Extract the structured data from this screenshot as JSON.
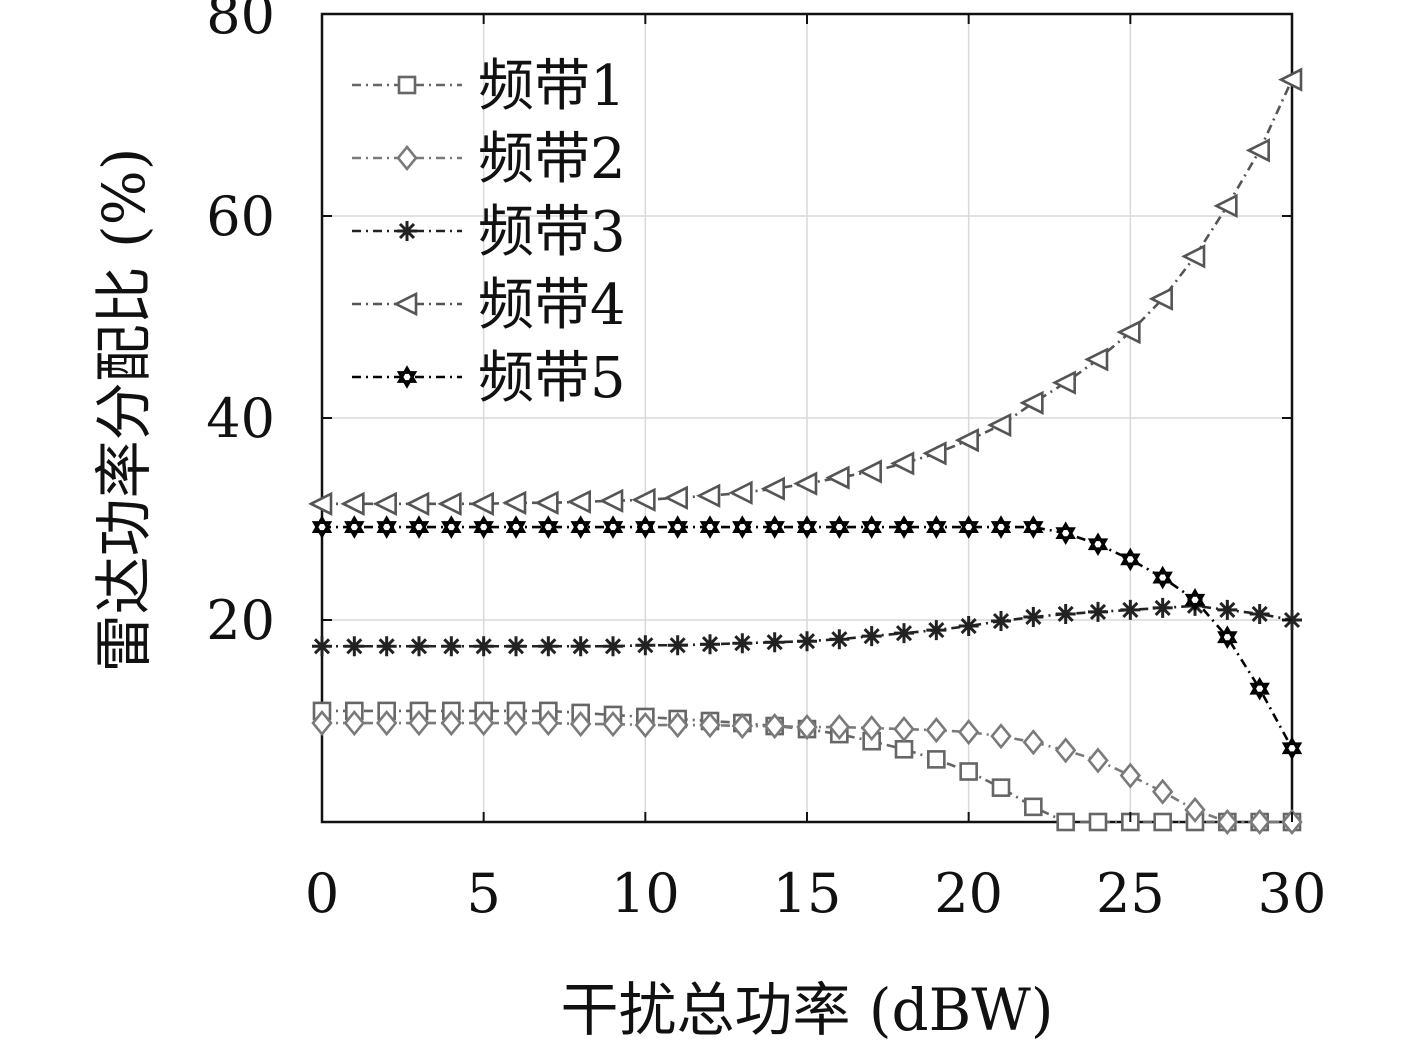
{
  "chart_data": {
    "type": "line",
    "xlabel": "干扰总功率 (dBW)",
    "ylabel": "雷达功率分配比 (%)",
    "xlim": [
      0,
      30
    ],
    "ylim": [
      0,
      80
    ],
    "xticks": [
      0,
      5,
      10,
      15,
      20,
      25,
      30
    ],
    "yticks": [
      20,
      40,
      60,
      80
    ],
    "grid": true,
    "legend_position": "top-left",
    "x": [
      0,
      1,
      2,
      3,
      4,
      5,
      6,
      7,
      8,
      9,
      10,
      11,
      12,
      13,
      14,
      15,
      16,
      17,
      18,
      19,
      20,
      21,
      22,
      23,
      24,
      25,
      26,
      27,
      28,
      29,
      30
    ],
    "series": [
      {
        "name": "频带1",
        "marker": "square",
        "color": "#666666",
        "values": [
          11,
          11,
          11,
          11,
          11,
          11,
          11,
          11,
          10.8,
          10.6,
          10.4,
          10.2,
          10,
          9.8,
          9.5,
          9.2,
          8.7,
          8,
          7.2,
          6.2,
          5,
          3.4,
          1.5,
          0,
          0,
          0,
          0,
          0,
          0,
          0,
          0
        ]
      },
      {
        "name": "频带2",
        "marker": "diamond",
        "color": "#7a7a7a",
        "values": [
          9.8,
          9.8,
          9.8,
          9.8,
          9.8,
          9.8,
          9.8,
          9.8,
          9.7,
          9.7,
          9.6,
          9.6,
          9.6,
          9.5,
          9.5,
          9.4,
          9.4,
          9.3,
          9.2,
          9.1,
          8.9,
          8.5,
          7.9,
          7.1,
          6.1,
          4.6,
          3,
          1.2,
          0,
          0,
          0
        ]
      },
      {
        "name": "频带3",
        "marker": "asterisk",
        "color": "#222222",
        "values": [
          17.4,
          17.4,
          17.4,
          17.4,
          17.4,
          17.4,
          17.4,
          17.4,
          17.4,
          17.4,
          17.5,
          17.5,
          17.6,
          17.7,
          17.8,
          17.9,
          18.1,
          18.4,
          18.7,
          19,
          19.4,
          19.9,
          20.3,
          20.6,
          20.8,
          21,
          21.2,
          21.4,
          21,
          20.6,
          20
        ]
      },
      {
        "name": "频带4",
        "marker": "triangle-left",
        "color": "#555555",
        "values": [
          31.5,
          31.5,
          31.5,
          31.5,
          31.5,
          31.5,
          31.6,
          31.6,
          31.7,
          31.8,
          31.9,
          32.1,
          32.3,
          32.6,
          33,
          33.5,
          34.1,
          34.7,
          35.5,
          36.5,
          37.8,
          39.3,
          41.5,
          43.5,
          45.8,
          48.5,
          51.8,
          56,
          61,
          66.5,
          73.5
        ]
      },
      {
        "name": "频带5",
        "marker": "hexagram",
        "color": "#000000",
        "values": [
          29.2,
          29.2,
          29.2,
          29.2,
          29.2,
          29.2,
          29.2,
          29.2,
          29.2,
          29.2,
          29.2,
          29.2,
          29.2,
          29.2,
          29.2,
          29.2,
          29.2,
          29.2,
          29.2,
          29.2,
          29.2,
          29.2,
          29.2,
          28.6,
          27.5,
          26,
          24.2,
          22,
          18.3,
          13.2,
          7.3
        ]
      }
    ]
  }
}
